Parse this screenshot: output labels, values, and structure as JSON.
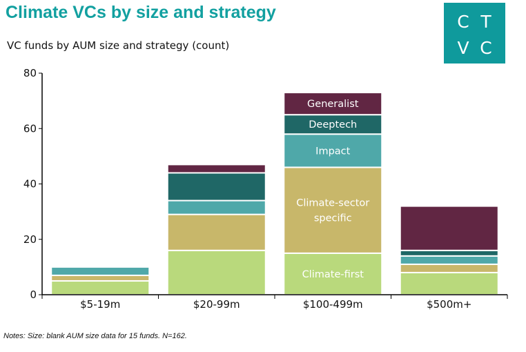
{
  "title": "Climate VCs by size and strategy",
  "subtitle": "VC funds by AUM size and strategy (count)",
  "logo": {
    "letters": [
      "C",
      "T",
      "V",
      "C"
    ],
    "color": "#0f9a9c"
  },
  "notes": "Notes: Size: blank AUM size data for 15 funds. N=162.",
  "chart_data": {
    "type": "bar",
    "stacked": true,
    "categories": [
      "$5-19m",
      "$20-99m",
      "$100-499m",
      "$500m+"
    ],
    "ylim": [
      0,
      80
    ],
    "yticks": [
      0,
      20,
      40,
      60,
      80
    ],
    "series": [
      {
        "name": "Climate-first",
        "color": "#b9d97c",
        "values": [
          5,
          16,
          15,
          8
        ]
      },
      {
        "name": "Climate-sector specific",
        "label_lines": [
          "Climate-sector",
          "specific"
        ],
        "color": "#c8b76a",
        "values": [
          2,
          13,
          31,
          3
        ]
      },
      {
        "name": "Impact",
        "color": "#4fa8a9",
        "values": [
          3,
          5,
          12,
          3
        ]
      },
      {
        "name": "Deeptech",
        "color": "#1f6766",
        "values": [
          0,
          10,
          7,
          2
        ]
      },
      {
        "name": "Generalist",
        "color": "#612643",
        "values": [
          0,
          3,
          8,
          16
        ]
      }
    ],
    "labeled_category": "$100-499m",
    "legend": "none",
    "grid": false
  }
}
